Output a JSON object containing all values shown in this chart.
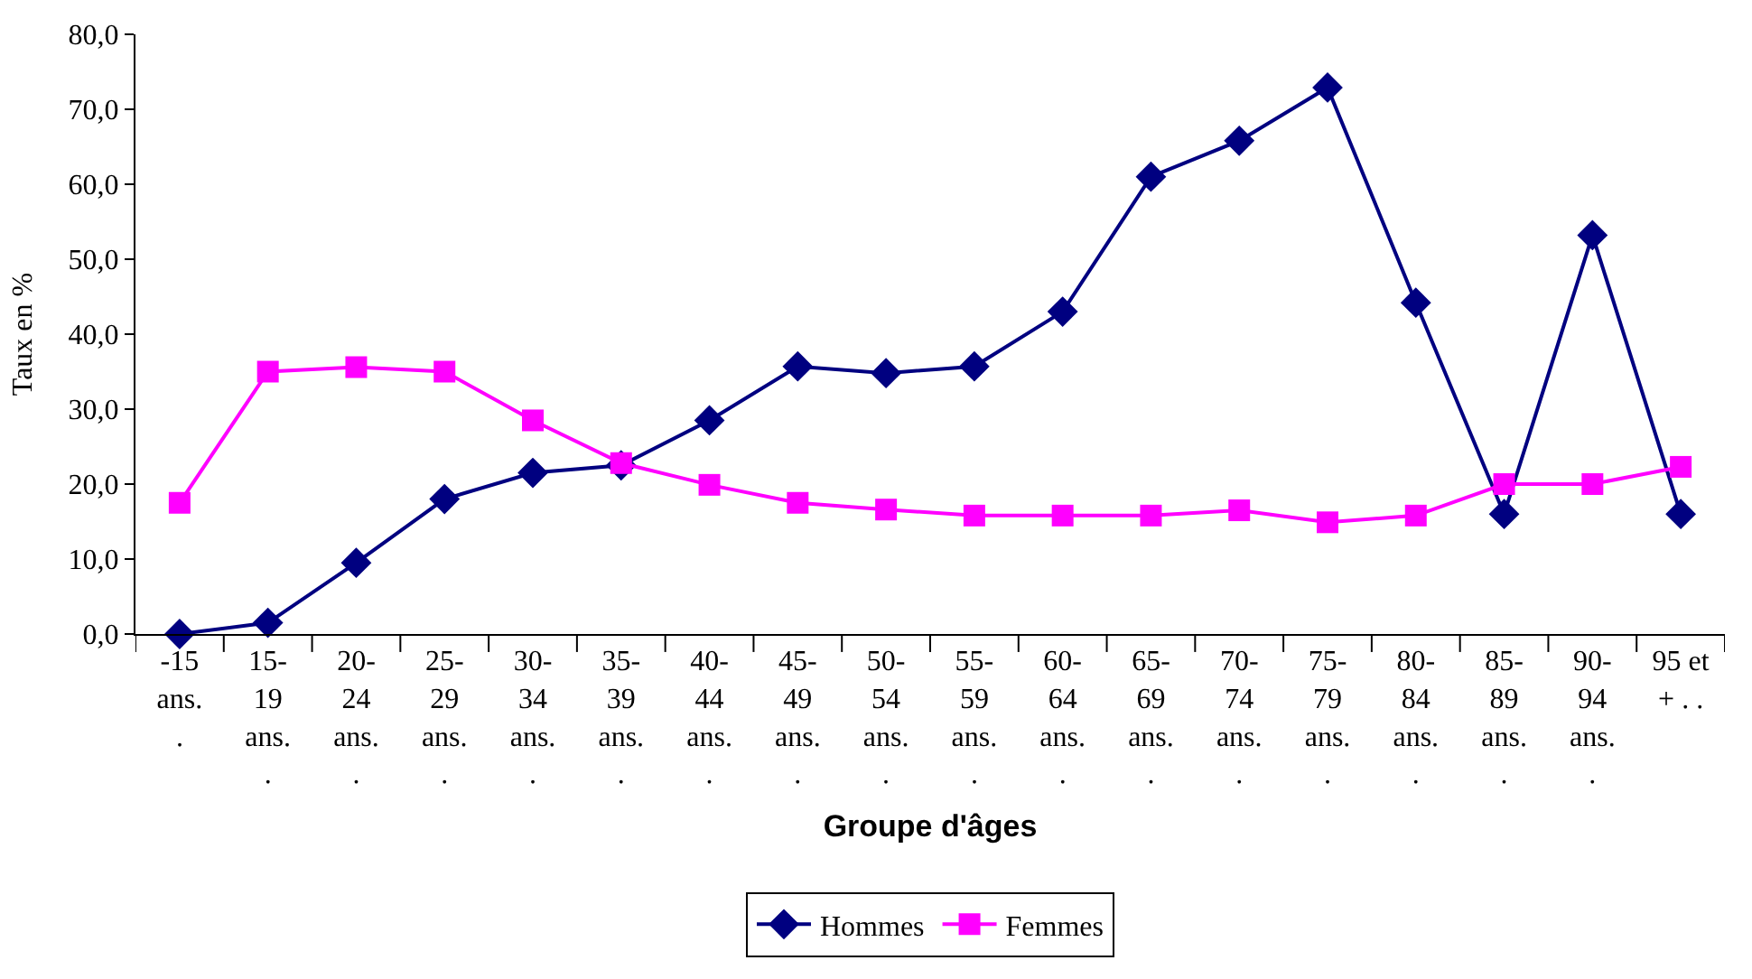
{
  "chart_data": {
    "type": "line",
    "xlabel": "Groupe d'âges",
    "ylabel": "Taux en %",
    "categories": [
      "-15\nans.\n.",
      "15-\n19\nans.\n.",
      "20-\n24\nans.\n.",
      "25-\n29\nans.\n.",
      "30-\n34\nans.\n.",
      "35-\n39\nans.\n.",
      "40-\n44\nans.\n.",
      "45-\n49\nans.\n.",
      "50-\n54\nans.\n.",
      "55-\n59\nans.\n.",
      "60-\n64\nans.\n.",
      "65-\n69\nans.\n.",
      "70-\n74\nans.\n.",
      "75-\n79\nans.\n.",
      "80-\n84\nans.\n.",
      "85-\n89\nans.\n.",
      "90-\n94\nans.\n.",
      "95 et\n+ . ."
    ],
    "series": [
      {
        "name": "Hommes",
        "color": "#000080",
        "marker": "diamond",
        "values": [
          0,
          1.5,
          9.5,
          18,
          21.5,
          22.5,
          28.5,
          35.7,
          34.8,
          35.7,
          43,
          61,
          65.8,
          72.9,
          44.2,
          16,
          53.2,
          16
        ]
      },
      {
        "name": "Femmes",
        "color": "#ff00ff",
        "marker": "square",
        "values": [
          17.5,
          35,
          35.6,
          35,
          28.5,
          22.8,
          19.9,
          17.5,
          16.6,
          15.8,
          15.8,
          15.8,
          16.5,
          14.9,
          15.8,
          20,
          20,
          22.3
        ]
      }
    ],
    "ylim": [
      0,
      80
    ],
    "yticks": [
      {
        "value": 0,
        "label": "0,0"
      },
      {
        "value": 10,
        "label": "10,0"
      },
      {
        "value": 20,
        "label": "20,0"
      },
      {
        "value": 30,
        "label": "30,0"
      },
      {
        "value": 40,
        "label": "40,0"
      },
      {
        "value": 50,
        "label": "50,0"
      },
      {
        "value": 60,
        "label": "60,0"
      },
      {
        "value": 70,
        "label": "70,0"
      },
      {
        "value": 80,
        "label": "80,0"
      }
    ],
    "legend": "bottom",
    "line_style": "solid"
  }
}
